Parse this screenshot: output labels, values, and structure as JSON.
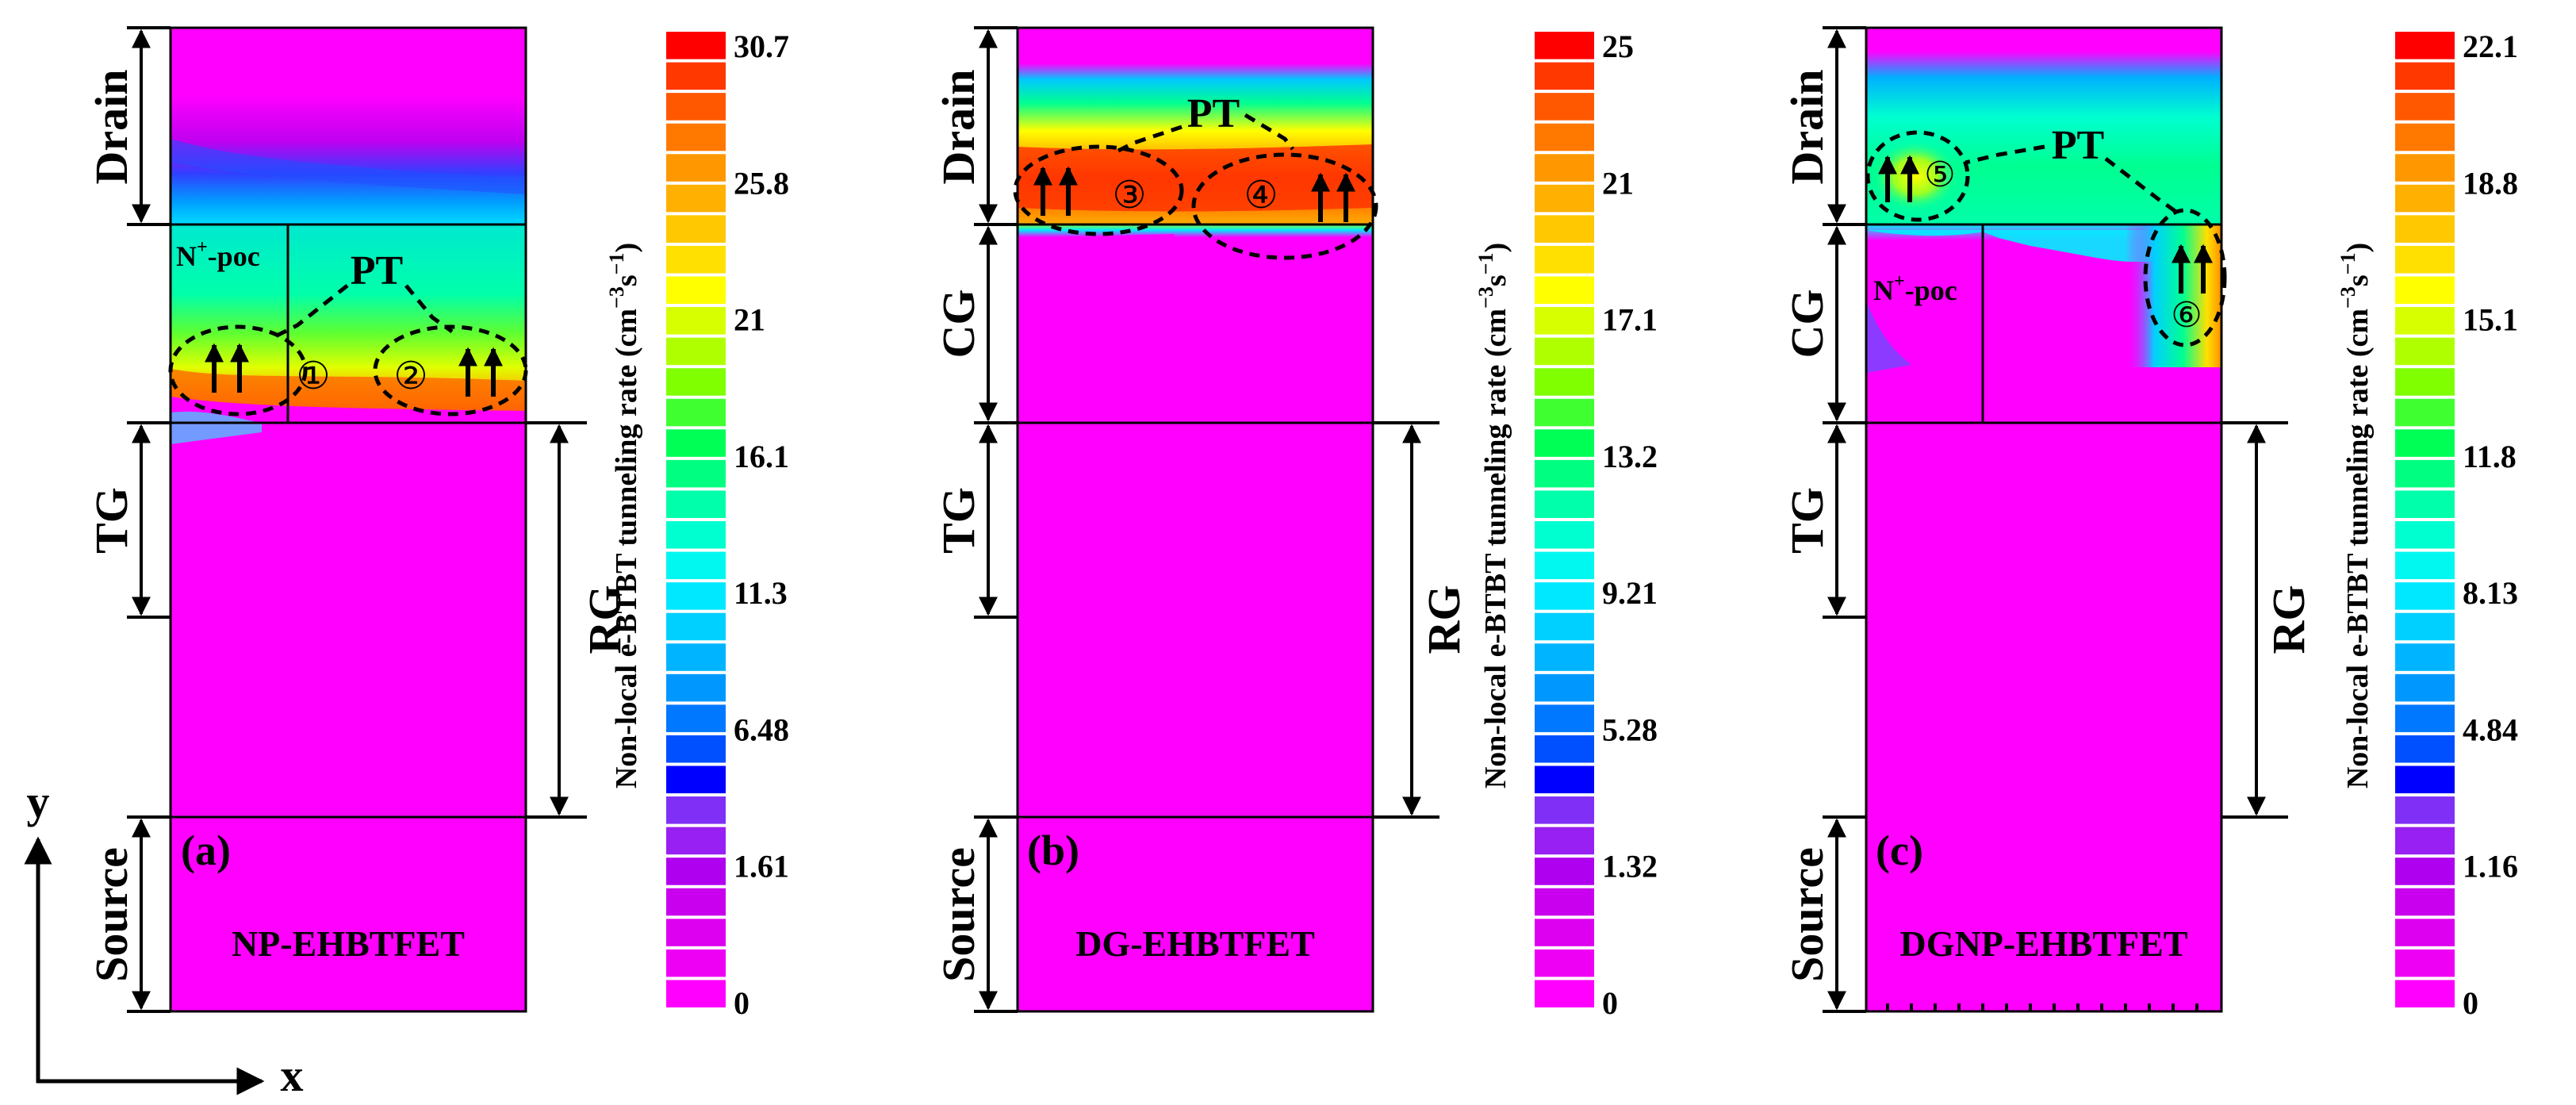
{
  "panels": [
    {
      "id": "a",
      "panel_label": "(a)",
      "device_name": "NP-EHBTFET",
      "region_labels": {
        "drain": "Drain",
        "middle_gate": "",
        "top_gate": "TG",
        "right_gate": "RG",
        "source": "Source"
      },
      "pocket_label": {
        "base": "N",
        "sup": "+",
        "rest": "-poc"
      },
      "pt_label": "PT",
      "ellipse_markers": [
        "①",
        "②"
      ],
      "colorbar_ticks": [
        "30.7",
        "25.8",
        "21",
        "16.1",
        "11.3",
        "6.48",
        "1.61",
        "0"
      ],
      "colorbar_title": {
        "pre": "Non-local e-BTBT tunneling rate (cm",
        "sup1": "−3",
        "mid": "s",
        "sup2": "−1",
        "post": ")"
      }
    },
    {
      "id": "b",
      "panel_label": "(b)",
      "device_name": "DG-EHBTFET",
      "region_labels": {
        "drain": "Drain",
        "middle_gate": "CG",
        "top_gate": "TG",
        "right_gate": "RG",
        "source": "Source"
      },
      "pocket_label": null,
      "pt_label": "PT",
      "ellipse_markers": [
        "③",
        "④"
      ],
      "colorbar_ticks": [
        "25",
        "21",
        "17.1",
        "13.2",
        "9.21",
        "5.28",
        "1.32",
        "0"
      ],
      "colorbar_title": {
        "pre": "Non-local e-BTBT tunneling rate (cm",
        "sup1": "−3",
        "mid": "s",
        "sup2": "−1",
        "post": ")"
      }
    },
    {
      "id": "c",
      "panel_label": "(c)",
      "device_name": "DGNP-EHBTFET",
      "region_labels": {
        "drain": "Drain",
        "middle_gate": "CG",
        "top_gate": "TG",
        "right_gate": "RG",
        "source": "Source"
      },
      "pocket_label": {
        "base": "N",
        "sup": "+",
        "rest": "-poc"
      },
      "pt_label": "PT",
      "ellipse_markers": [
        "⑤",
        "⑥"
      ],
      "colorbar_ticks": [
        "22.1",
        "18.8",
        "15.1",
        "11.8",
        "8.13",
        "4.84",
        "1.16",
        "0"
      ],
      "colorbar_title": {
        "pre": "Non-local e-BTBT tunneling rate (cm",
        "sup1": "−3",
        "mid": "s",
        "sup2": "−1",
        "post": ")"
      }
    }
  ],
  "axes": {
    "x_label": "x",
    "y_label": "y"
  },
  "colors": {
    "background": "#ff00ff",
    "colormap": [
      "#ff00ff",
      "#ee00f4",
      "#dd00f0",
      "#c800ee",
      "#b000f0",
      "#9820f2",
      "#8030f6",
      "#0000ff",
      "#0050ff",
      "#0078ff",
      "#0098ff",
      "#00b4ff",
      "#00d0ff",
      "#00e8ff",
      "#00f8f0",
      "#00ffd0",
      "#00ffaa",
      "#00ff80",
      "#00ff55",
      "#40ff30",
      "#80ff00",
      "#b0ff00",
      "#d8ff00",
      "#ffff00",
      "#ffe000",
      "#ffc800",
      "#ffb000",
      "#ff9800",
      "#ff7800",
      "#ff5800",
      "#ff3800",
      "#ff0000"
    ]
  }
}
